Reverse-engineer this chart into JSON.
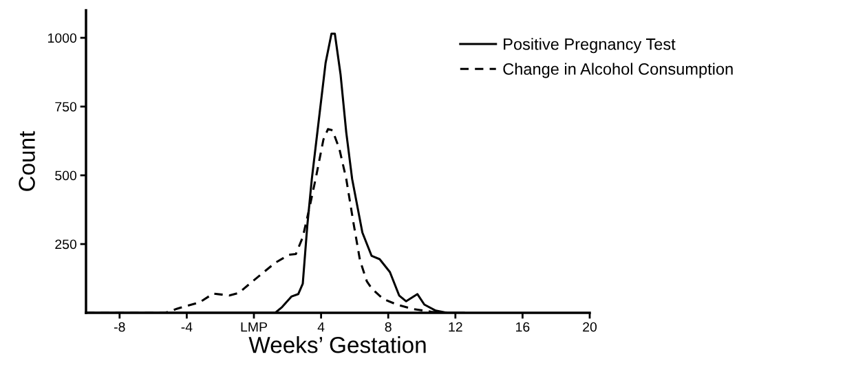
{
  "chart_data": {
    "type": "line",
    "xlabel": "Weeks’ Gestation",
    "ylabel": "Count",
    "xlim": [
      -10,
      20
    ],
    "ylim": [
      0,
      1100
    ],
    "xticks": [
      -8,
      -4,
      {
        "value": 0,
        "label": "LMP"
      },
      4,
      8,
      12,
      16,
      20
    ],
    "yticks": [
      250,
      500,
      750,
      1000
    ],
    "grid": false,
    "legend": "top right",
    "marker": "none",
    "series": [
      {
        "name": "Positive Pregnancy Test",
        "color": "#000000",
        "line_style": "solid",
        "x": [
          -10,
          -5,
          0,
          1.27,
          1.68,
          2.23,
          2.64,
          2.91,
          3.18,
          3.45,
          3.86,
          4.27,
          4.62,
          4.82,
          5.16,
          5.5,
          5.85,
          6.46,
          7.01,
          7.49,
          8.1,
          8.65,
          9.06,
          9.74,
          10.15,
          10.83,
          11.5,
          12.5
        ],
        "values": [
          0,
          0,
          0,
          0,
          21,
          59,
          68,
          106,
          317,
          487,
          698,
          909,
          1015,
          1015,
          867,
          656,
          487,
          292,
          207,
          195,
          148,
          63,
          42,
          68,
          30,
          8,
          0,
          0
        ]
      },
      {
        "name": "Change in Alcohol Consumption",
        "color": "#000000",
        "line_style": "dashed",
        "x": [
          -10,
          -5.29,
          -4.47,
          -3.24,
          -2.42,
          -1.46,
          -0.91,
          -0.09,
          1.27,
          2.09,
          2.5,
          2.91,
          3.32,
          3.73,
          4.14,
          4.41,
          4.68,
          5.09,
          5.5,
          5.91,
          6.32,
          6.73,
          7.01,
          7.69,
          8.51,
          9.47,
          10.56,
          11.5
        ],
        "values": [
          0,
          0,
          17,
          38,
          70,
          63,
          72,
          114,
          182,
          211,
          214,
          275,
          385,
          503,
          630,
          668,
          664,
          596,
          487,
          334,
          190,
          114,
          89,
          51,
          30,
          14,
          4,
          0
        ]
      }
    ]
  }
}
